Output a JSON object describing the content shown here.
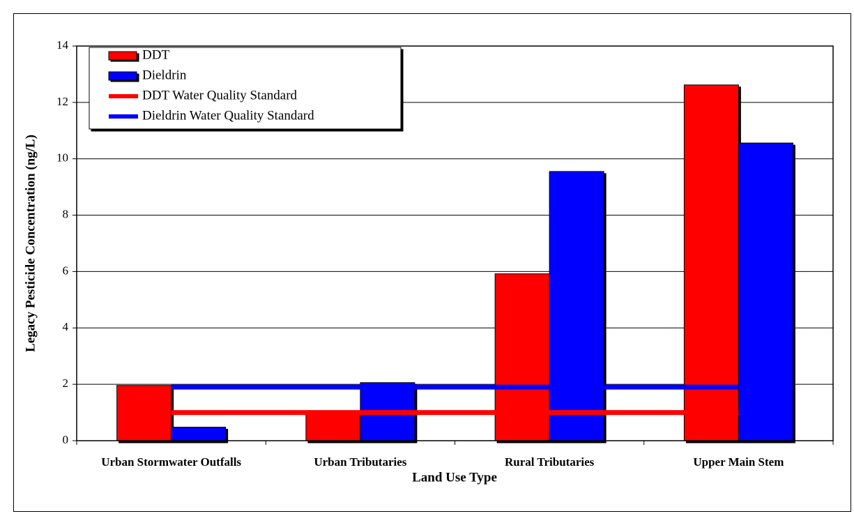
{
  "chart_data": {
    "type": "bar",
    "y_label": "Legacy Pesticide Concentration (ng/L)",
    "x_label": "Land Use Type",
    "categories": [
      "Urban Stormwater Outfalls",
      "Urban Tributaries",
      "Rural Tributaries",
      "Upper Main Stem"
    ],
    "series": [
      {
        "name": "DDT",
        "type": "bar",
        "color": "#ff0000",
        "values": [
          1.96,
          1.04,
          5.92,
          12.62
        ]
      },
      {
        "name": "Dieldrin",
        "type": "bar",
        "color": "#0000ff",
        "values": [
          0.48,
          2.06,
          9.55,
          10.56
        ]
      },
      {
        "name": "DDT Water Quality Standard",
        "type": "line",
        "color": "#ff0000",
        "values": [
          1.0,
          1.0,
          1.0,
          1.0
        ]
      },
      {
        "name": "Dieldrin Water Quality Standard",
        "type": "line",
        "color": "#0000ff",
        "values": [
          1.9,
          1.9,
          1.9,
          1.9
        ]
      }
    ],
    "ylim": [
      0,
      14
    ],
    "yticks": [
      0,
      2,
      4,
      6,
      8,
      10,
      12,
      14
    ],
    "grid": true,
    "legend": "top-left"
  }
}
